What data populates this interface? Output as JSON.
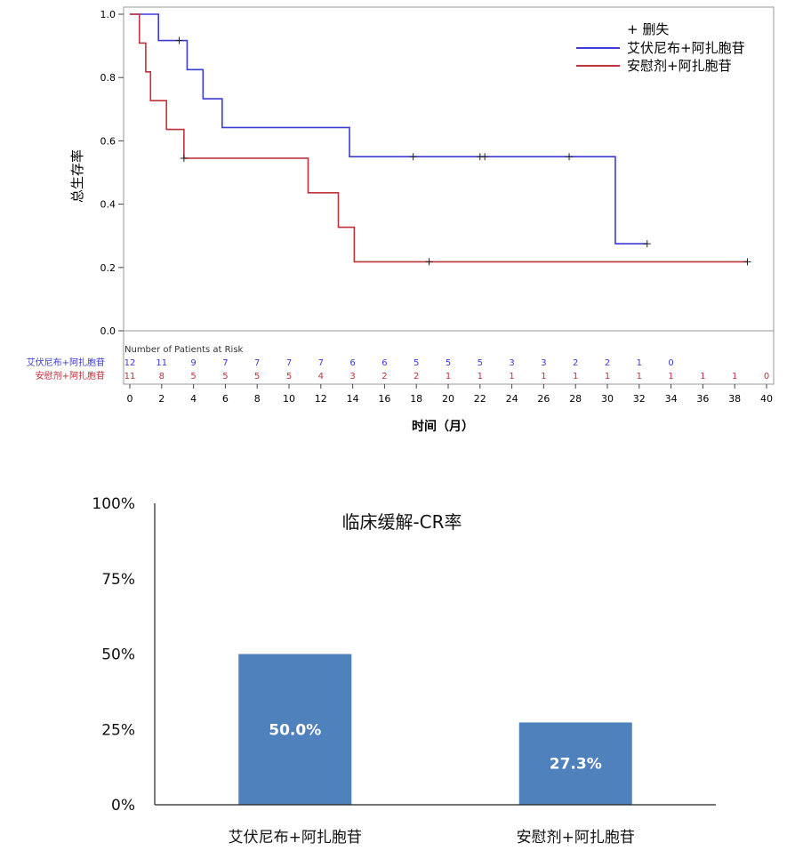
{
  "chart_data": [
    {
      "type": "line",
      "ylabel": "总生存率",
      "xlabel": "时间（月）",
      "xlim": [
        0,
        40
      ],
      "ylim": [
        0.0,
        1.0
      ],
      "xticks": [
        0,
        2,
        4,
        6,
        8,
        10,
        12,
        14,
        16,
        18,
        20,
        22,
        24,
        26,
        28,
        30,
        32,
        34,
        36,
        38,
        40
      ],
      "yticks": [
        "0.0",
        "0.2",
        "0.4",
        "0.6",
        "0.8",
        "1.0"
      ],
      "legend": {
        "position": "top-right",
        "censor_label": "+ 删失"
      },
      "series": [
        {
          "name": "艾伏尼布+阿扎胞苷",
          "color": "#3b3bd6",
          "steps": [
            [
              0,
              1.0
            ],
            [
              1.8,
              0.917
            ],
            [
              3.6,
              0.825
            ],
            [
              4.6,
              0.733
            ],
            [
              5.8,
              0.642
            ],
            [
              13.8,
              0.55
            ],
            [
              30.5,
              0.275
            ],
            [
              32.5,
              0.275
            ]
          ],
          "censors": [
            [
              3.1,
              0.917
            ],
            [
              17.8,
              0.55
            ],
            [
              22.0,
              0.55
            ],
            [
              22.3,
              0.55
            ],
            [
              27.6,
              0.55
            ],
            [
              32.5,
              0.275
            ]
          ]
        },
        {
          "name": "安慰剂+阿扎胞苷",
          "color": "#c0323c",
          "steps": [
            [
              0,
              1.0
            ],
            [
              0.6,
              0.909
            ],
            [
              1.0,
              0.818
            ],
            [
              1.3,
              0.727
            ],
            [
              2.3,
              0.636
            ],
            [
              3.4,
              0.545
            ],
            [
              11.2,
              0.436
            ],
            [
              13.1,
              0.327
            ],
            [
              14.1,
              0.218
            ],
            [
              38.8,
              0.218
            ]
          ],
          "censors": [
            [
              3.4,
              0.545
            ],
            [
              18.8,
              0.218
            ],
            [
              38.8,
              0.218
            ]
          ]
        }
      ],
      "risk_table": {
        "title": "Number of Patients at Risk",
        "times": [
          0,
          2,
          4,
          6,
          8,
          10,
          12,
          14,
          16,
          18,
          20,
          22,
          24,
          26,
          28,
          30,
          32,
          34,
          36,
          38,
          40
        ],
        "rows": [
          {
            "label": "艾伏尼布+阿扎胞苷",
            "color": "#3b3bd6",
            "values": [
              "12",
              "11",
              "9",
              "7",
              "7",
              "7",
              "7",
              "6",
              "6",
              "5",
              "5",
              "5",
              "3",
              "3",
              "2",
              "2",
              "1",
              "0",
              "",
              "",
              ""
            ]
          },
          {
            "label": "安慰剂+阿扎胞苷",
            "color": "#c0323c",
            "values": [
              "11",
              "8",
              "5",
              "5",
              "5",
              "5",
              "4",
              "3",
              "2",
              "2",
              "1",
              "1",
              "1",
              "1",
              "1",
              "1",
              "1",
              "1",
              "1",
              "1",
              "0"
            ]
          }
        ]
      }
    },
    {
      "type": "bar",
      "title": "临床缓解-CR率",
      "categories": [
        "艾伏尼布+阿扎胞苷",
        "安慰剂+阿扎胞苷"
      ],
      "values": [
        50.0,
        27.3
      ],
      "value_labels": [
        "50.0%",
        "27.3%"
      ],
      "ylim": [
        0,
        100
      ],
      "yticks": [
        "0%",
        "25%",
        "50%",
        "75%",
        "100%"
      ],
      "bar_color": "#4f81bd",
      "label_color": "#ffffff"
    }
  ]
}
